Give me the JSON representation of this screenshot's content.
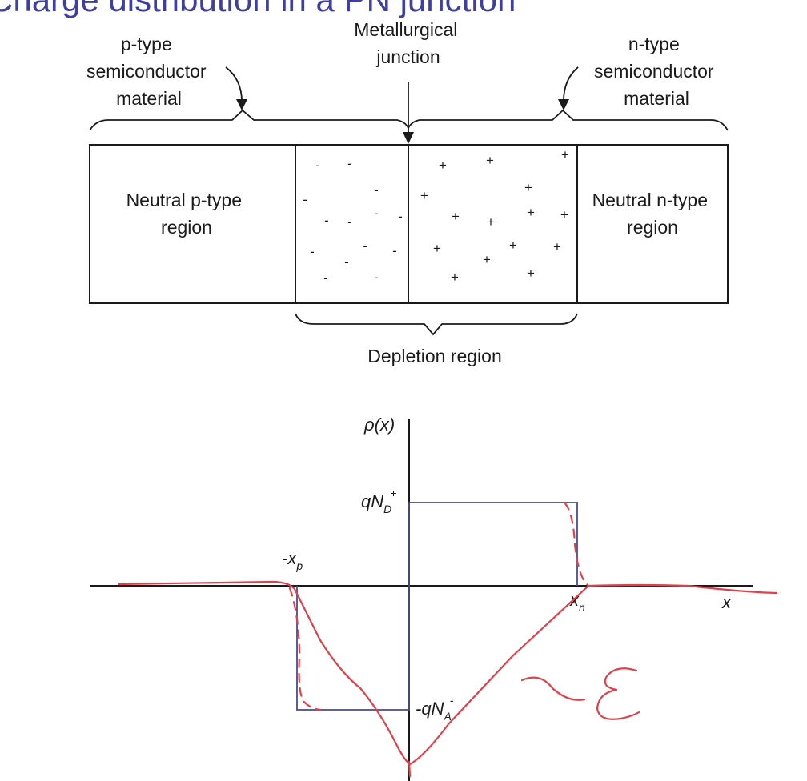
{
  "title": "Charge distribution in a PN junction",
  "labels": {
    "p_material": [
      "p-type",
      "semiconductor",
      "material"
    ],
    "junction": [
      "Metallurgical",
      "junction"
    ],
    "n_material": [
      "n-type",
      "semiconductor",
      "material"
    ],
    "neutral_p": [
      "Neutral p-type",
      "region"
    ],
    "neutral_n": [
      "Neutral n-type",
      "region"
    ],
    "depletion": "Depletion region"
  },
  "charges": {
    "negative_sign": "-",
    "positive_sign": "+"
  },
  "plot": {
    "y_label": "ρ(x)",
    "qnd": {
      "main": "qN",
      "sub": "D",
      "sup": "+"
    },
    "qna": {
      "main": "-qN",
      "sub": "A",
      "sup": "-"
    },
    "xp": {
      "main": "-x",
      "sub": "p"
    },
    "xn": {
      "main": "x",
      "sub": "n"
    },
    "x_label": "x"
  },
  "annotation": {
    "symbol": "ε",
    "color": "#e0404a"
  },
  "colors": {
    "title": "#3f3f9f",
    "diagram_lines": "#1a1a1a",
    "charge_density": "#4a4a8a",
    "handwriting": "#e0404a"
  }
}
